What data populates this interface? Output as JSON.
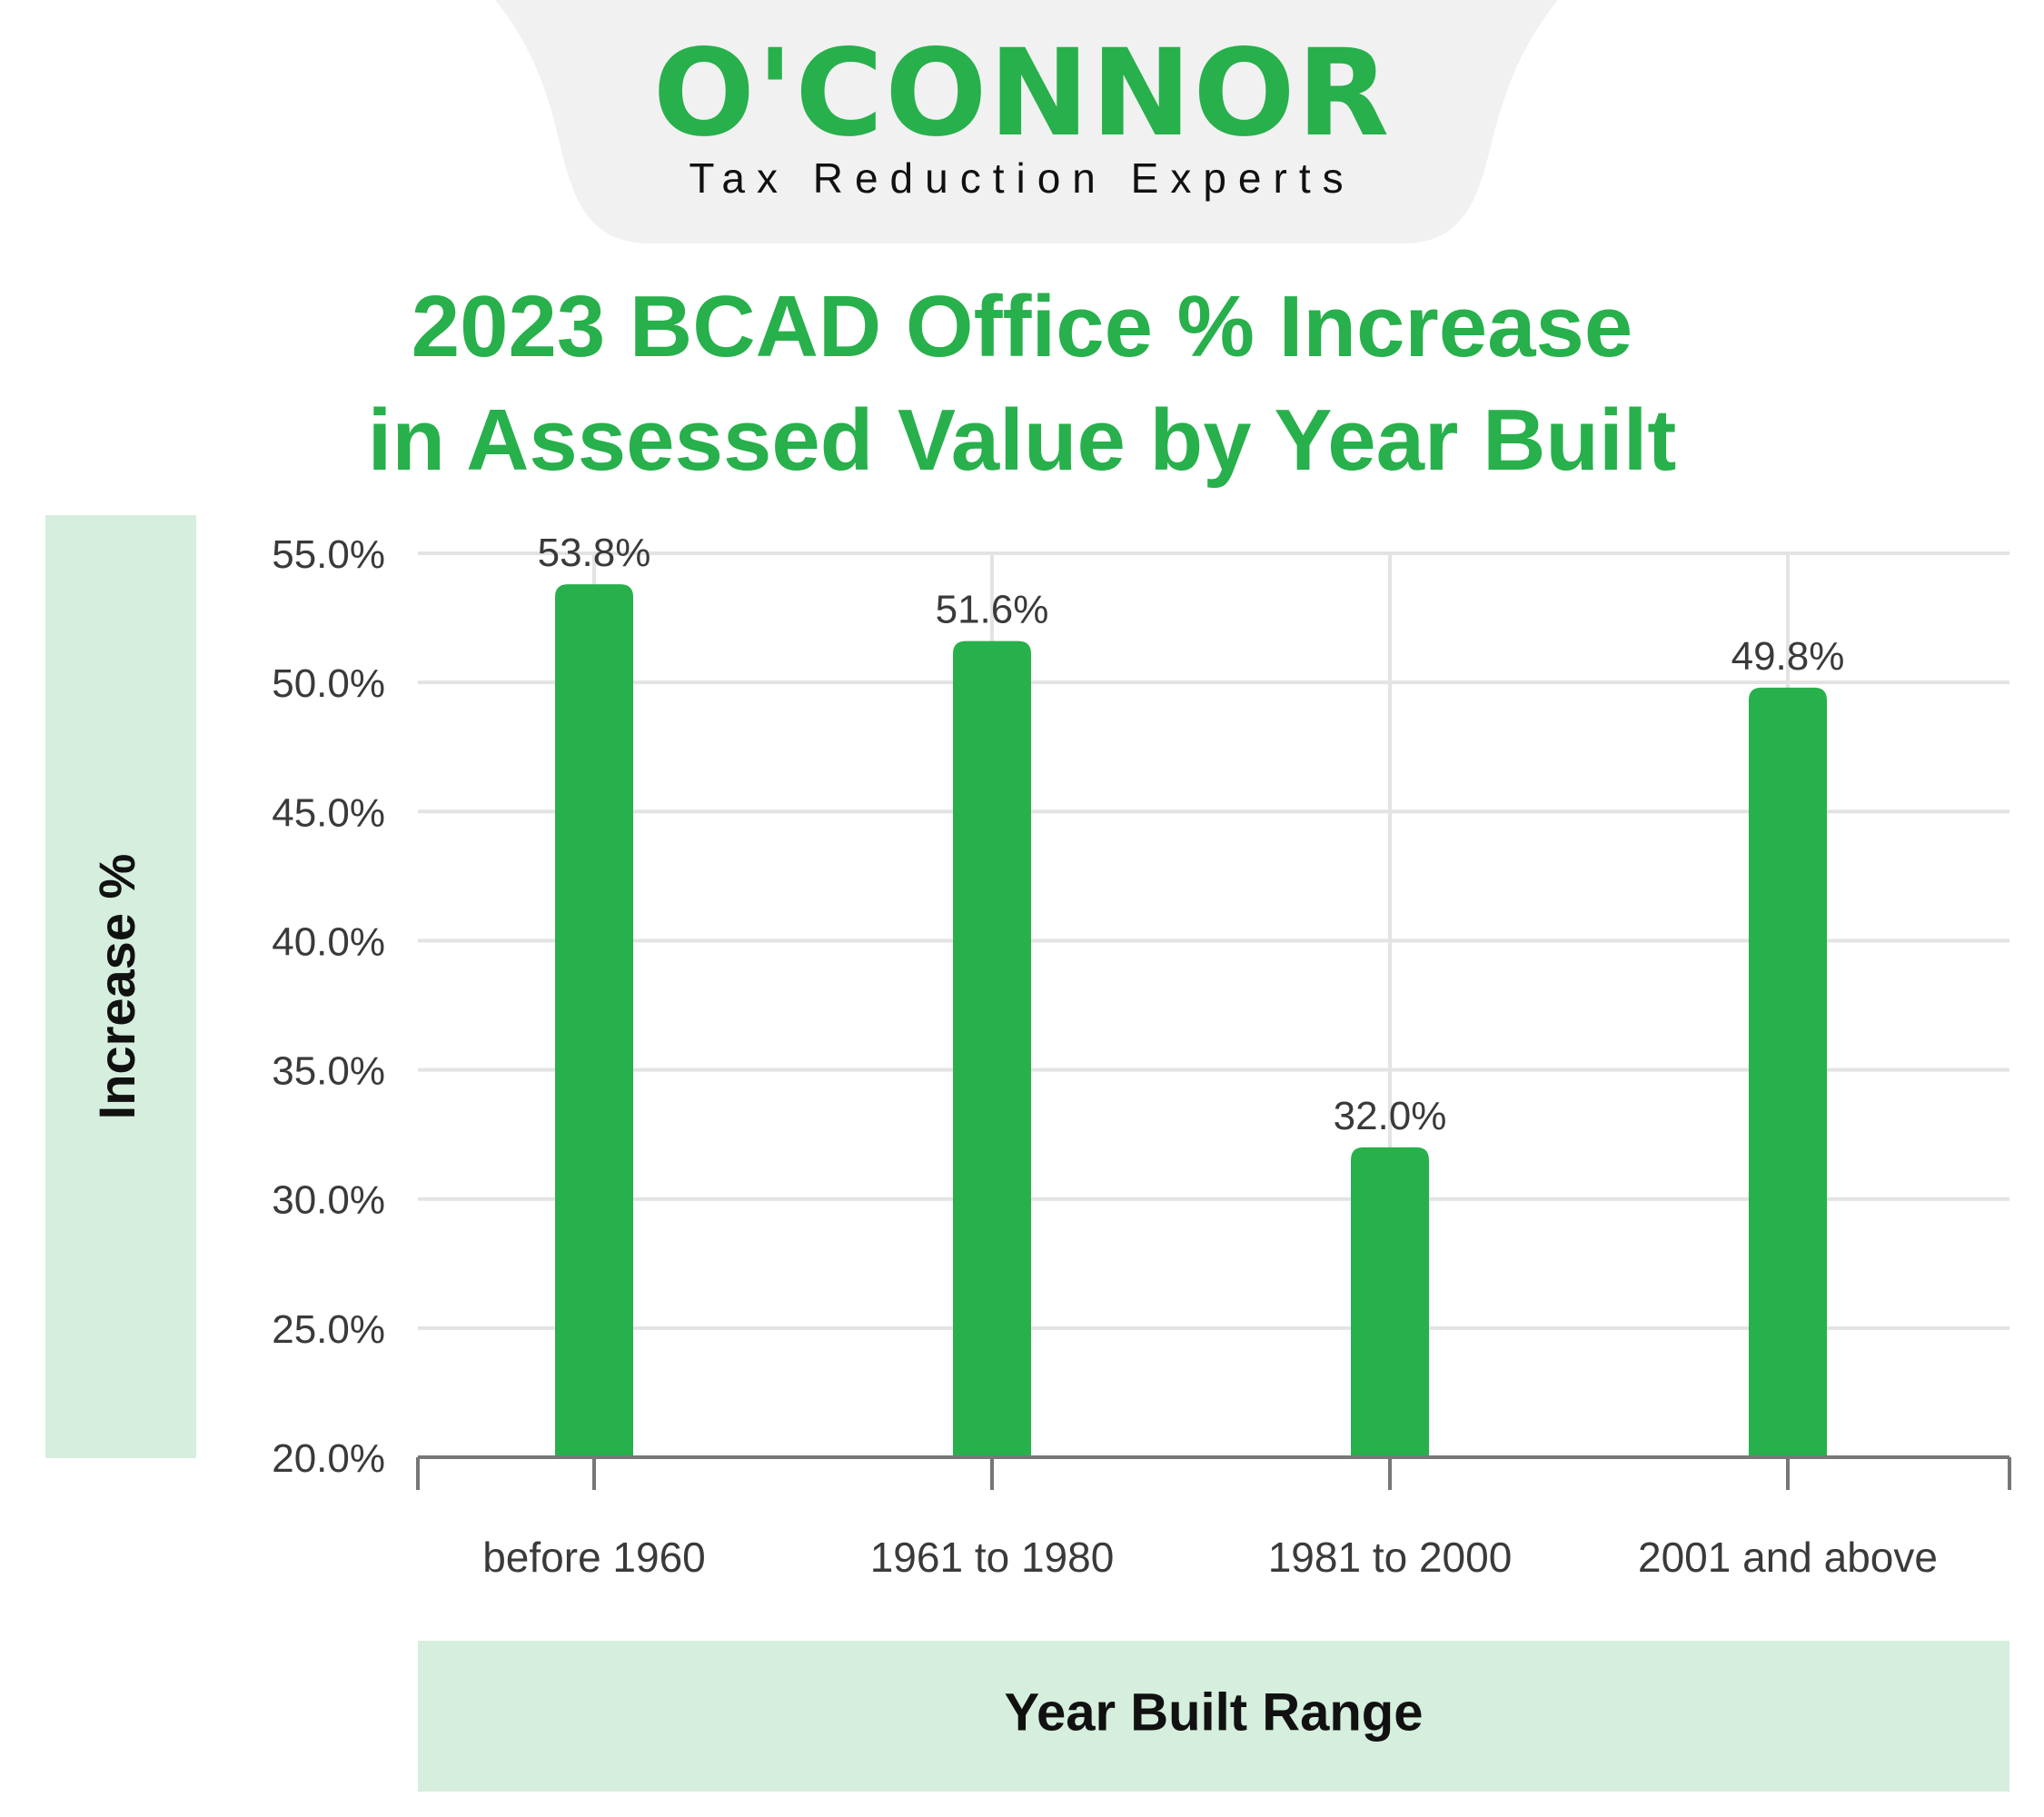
{
  "brand": {
    "name": "O'CONNOR",
    "tagline": "Tax Reduction Experts",
    "color": "#27b04b"
  },
  "colors": {
    "title": "#27b04b",
    "bar": "#27b04b",
    "axis_label_panel": "#d5eedd",
    "grid": "#e3e3e3",
    "axis": "#777777",
    "text": "#3a3a3a",
    "header_bg": "#f1f1f1"
  },
  "chart_data": {
    "type": "bar",
    "title_lines": [
      "2023 BCAD Office % Increase",
      "in Assessed Value by Year Built"
    ],
    "xlabel": "Year Built Range",
    "ylabel": "Increase %",
    "categories": [
      "before 1960",
      "1961 to 1980",
      "1981 to 2000",
      "2001 and above"
    ],
    "values": [
      53.8,
      51.6,
      32.0,
      49.8
    ],
    "value_labels": [
      "53.8%",
      "51.6%",
      "32.0%",
      "49.8%"
    ],
    "ylim": [
      20,
      55
    ],
    "yticks": [
      20,
      25,
      30,
      35,
      40,
      45,
      50,
      55
    ],
    "ytick_labels": [
      "20.0%",
      "25.0%",
      "30.0%",
      "35.0%",
      "40.0%",
      "45.0%",
      "50.0%",
      "55.0%"
    ],
    "grid": true,
    "legend": "none"
  }
}
